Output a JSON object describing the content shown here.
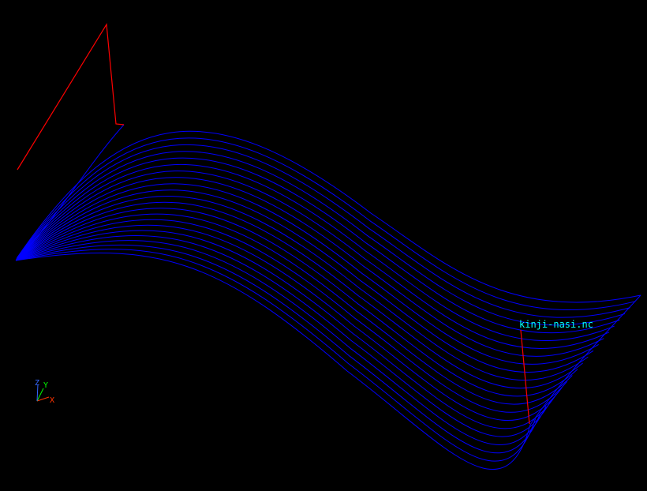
{
  "viewer": {
    "background_color": "#000000",
    "toolpath_color": "#0000ff",
    "rapid_move_color": "#ff0000",
    "label_color": "#00ffff",
    "file_name": "kinji-nasi.nc",
    "toolpath_pass_count": 22
  },
  "axis_triad": {
    "x_label": "X",
    "y_label": "Y",
    "z_label": "Z",
    "x_color": "#ff3300",
    "y_color": "#00ff00",
    "z_color": "#3366ff"
  }
}
